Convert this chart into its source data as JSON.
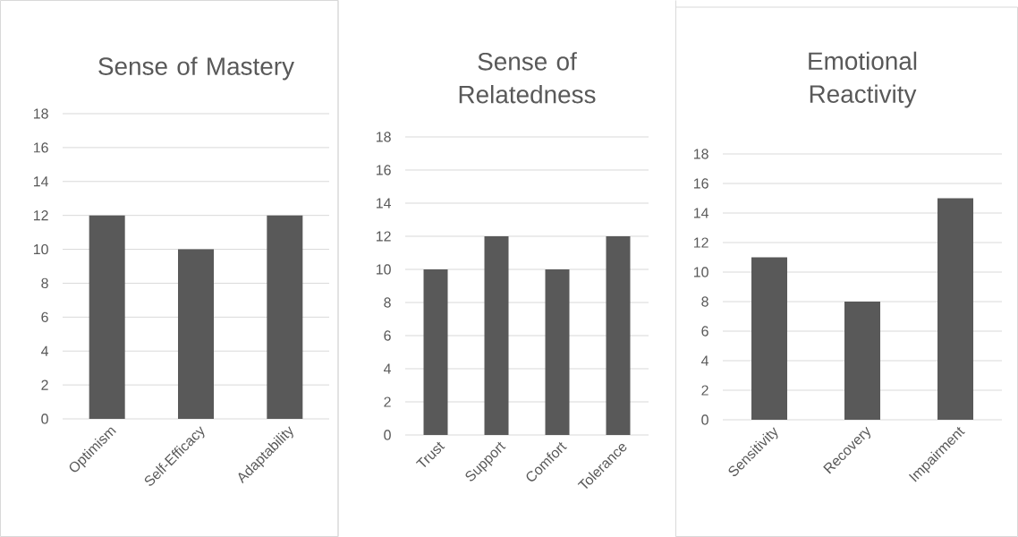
{
  "chart_data": [
    {
      "type": "bar",
      "title": "Sense of Mastery",
      "categories": [
        "Optimism",
        "Self-Efficacy",
        "Adaptability"
      ],
      "values": [
        12,
        10,
        12
      ],
      "color": "#595959",
      "ylim": [
        0,
        18
      ],
      "yticks": [
        0,
        2,
        4,
        6,
        8,
        10,
        12,
        14,
        16,
        18
      ],
      "grid": "y"
    },
    {
      "type": "bar",
      "title": "Sense of Relatedness",
      "categories": [
        "Trust",
        "Support",
        "Comfort",
        "Tolerance"
      ],
      "values": [
        10,
        12,
        10,
        12
      ],
      "color": "#595959",
      "ylim": [
        0,
        18
      ],
      "yticks": [
        0,
        2,
        4,
        6,
        8,
        10,
        12,
        14,
        16,
        18
      ],
      "grid": "y"
    },
    {
      "type": "bar",
      "title": "Emotional Reactivity",
      "categories": [
        "Sensitivity",
        "Recovery",
        "Impairment"
      ],
      "values": [
        11,
        8,
        15
      ],
      "color": "#595959",
      "ylim": [
        0,
        18
      ],
      "yticks": [
        0,
        2,
        4,
        6,
        8,
        10,
        12,
        14,
        16,
        18
      ],
      "grid": "y"
    }
  ]
}
